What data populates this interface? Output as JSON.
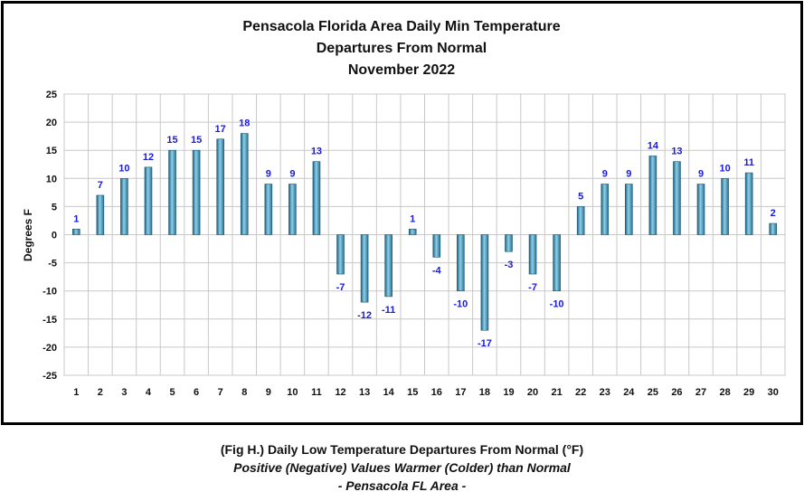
{
  "chart_data": {
    "type": "bar",
    "title": [
      "Pensacola Florida Area Daily Min Temperature",
      "Departures From Normal",
      "November 2022"
    ],
    "ylabel": "Degrees F",
    "xlabel": "",
    "categories": [
      "1",
      "2",
      "3",
      "4",
      "5",
      "6",
      "7",
      "8",
      "9",
      "10",
      "11",
      "12",
      "13",
      "14",
      "15",
      "16",
      "17",
      "18",
      "19",
      "20",
      "21",
      "22",
      "23",
      "24",
      "25",
      "26",
      "27",
      "28",
      "29",
      "30"
    ],
    "values": [
      1,
      7,
      10,
      12,
      15,
      15,
      17,
      18,
      9,
      9,
      13,
      -7,
      -12,
      -11,
      1,
      -4,
      -10,
      -17,
      -3,
      -7,
      -10,
      5,
      9,
      9,
      14,
      13,
      9,
      10,
      11,
      2
    ],
    "ylim": [
      -25,
      25
    ],
    "yticks": [
      25,
      20,
      15,
      10,
      5,
      0,
      -5,
      -10,
      -15,
      -20,
      -25
    ],
    "grid": true,
    "legend": "none",
    "bar_color": "#3f8fb0",
    "label_color": "#1a1adb"
  },
  "caption": {
    "line1": "(Fig H.) Daily Low Temperature Departures From Normal (°F)",
    "line2": "Positive (Negative) Values Warmer (Colder) than Normal",
    "line3": "- Pensacola FL Area -"
  }
}
